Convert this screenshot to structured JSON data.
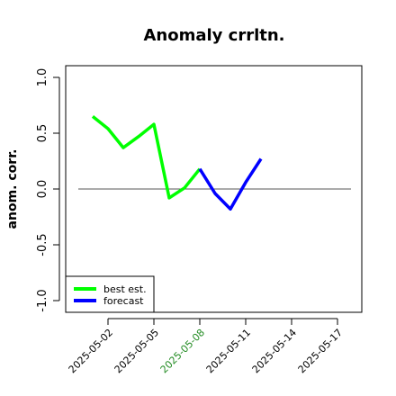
{
  "chart_data": {
    "type": "line",
    "title": "Anomaly crrltn.",
    "xlabel": "",
    "ylabel": "anom. corr.",
    "ylim": [
      -1.05,
      1.05
    ],
    "yticks": [
      "-1.0",
      "-0.5",
      "0.0",
      "0.5",
      "1.0"
    ],
    "xticks": [
      "2025-05-02",
      "2025-05-05",
      "2025-05-08",
      "2025-05-11",
      "2025-05-14",
      "2025-05-17"
    ],
    "highlight_xtick": "2025-05-08",
    "highlight_color": "#228b22",
    "reference_line": 0.0,
    "legend_position": "bottom-left",
    "series": [
      {
        "name": "best est.",
        "color": "#00ff00",
        "points": [
          {
            "x": "2025-05-01",
            "y": 0.65
          },
          {
            "x": "2025-05-02",
            "y": 0.54
          },
          {
            "x": "2025-05-03",
            "y": 0.37
          },
          {
            "x": "2025-05-04",
            "y": 0.47
          },
          {
            "x": "2025-05-05",
            "y": 0.58
          },
          {
            "x": "2025-05-06",
            "y": -0.08
          },
          {
            "x": "2025-05-07",
            "y": 0.01
          },
          {
            "x": "2025-05-08",
            "y": 0.18
          }
        ]
      },
      {
        "name": "forecast",
        "color": "#0000ff",
        "points": [
          {
            "x": "2025-05-08",
            "y": 0.18
          },
          {
            "x": "2025-05-09",
            "y": -0.04
          },
          {
            "x": "2025-05-10",
            "y": -0.18
          },
          {
            "x": "2025-05-11",
            "y": 0.06
          },
          {
            "x": "2025-05-12",
            "y": 0.27
          }
        ]
      }
    ]
  }
}
